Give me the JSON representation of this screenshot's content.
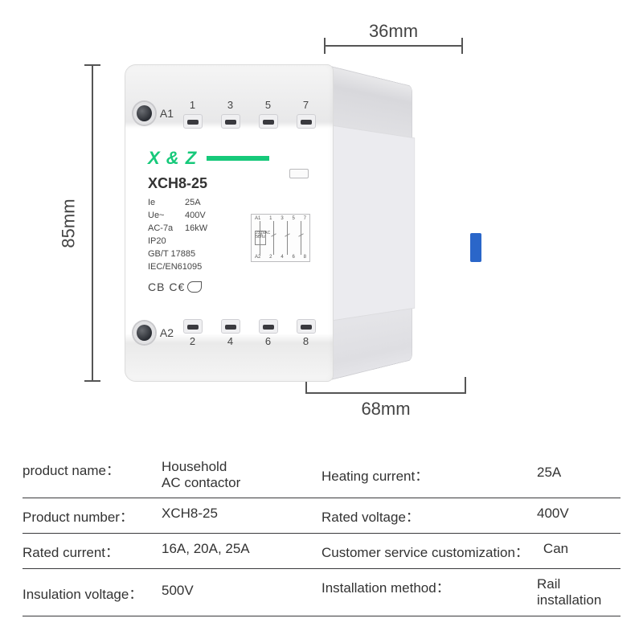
{
  "dimensions": {
    "height_label": "85mm",
    "width_top_label": "36mm",
    "depth_label": "68mm"
  },
  "terminals": {
    "top_numbers": [
      "1",
      "3",
      "5",
      "7"
    ],
    "bottom_numbers": [
      "2",
      "4",
      "6",
      "8"
    ],
    "a_top": "A1",
    "a_bottom": "A2"
  },
  "brand": "X & Z",
  "model": "XCH8-25",
  "device_specs": {
    "ie_k": "Ie",
    "ie_v": "25A",
    "ue_k": "Ue~",
    "ue_v": "400V",
    "ac_k": "AC-7a",
    "ac_v": "16kW",
    "ip_k": "IP20",
    "gbt": "GB/T 17885",
    "iec": "IEC/EN61095"
  },
  "circuit": {
    "a1": "A1",
    "a2": "A2",
    "top_nums": [
      "1",
      "3",
      "5",
      "7"
    ],
    "bot_nums": [
      "2",
      "4",
      "6",
      "8"
    ],
    "coil_l1": "230VAC",
    "coil_l2": "50Hz"
  },
  "cert_text": "CB C€",
  "table": {
    "r0": {
      "k1": "product name：",
      "v1": "Household\nAC contactor",
      "k2": "Heating current：",
      "v2": "25A"
    },
    "r1": {
      "k1": "Product number：",
      "v1": "XCH8-25",
      "k2": "Rated voltage：",
      "v2": "400V"
    },
    "r2": {
      "k1": "Rated current：",
      "v1": "16A, 20A, 25A",
      "k2": "Customer service customization：",
      "v2": "Can"
    },
    "r3": {
      "k1": "Insulation voltage：",
      "v1": "500V",
      "k2": "Installation method：",
      "v2": "Rail installation"
    }
  },
  "colors": {
    "brand_green": "#16c97a",
    "rule_color": "#3a3a3c",
    "text_color": "#333333",
    "dim_color": "#555555",
    "blue_clip": "#2a66c9"
  }
}
